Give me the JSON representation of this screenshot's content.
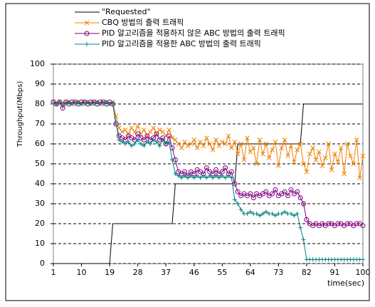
{
  "chart_data": {
    "type": "line",
    "y_label": "Throughput(Mbps)",
    "x_label": "time(sec)",
    "x": [
      1,
      2,
      3,
      4,
      5,
      6,
      7,
      8,
      9,
      10,
      11,
      12,
      13,
      14,
      15,
      16,
      17,
      18,
      19,
      20,
      21,
      22,
      23,
      24,
      25,
      26,
      27,
      28,
      29,
      30,
      31,
      32,
      33,
      34,
      35,
      36,
      37,
      38,
      39,
      40,
      41,
      42,
      43,
      44,
      45,
      46,
      47,
      48,
      49,
      50,
      51,
      52,
      53,
      54,
      55,
      56,
      57,
      58,
      59,
      60,
      61,
      62,
      63,
      64,
      65,
      66,
      67,
      68,
      69,
      70,
      71,
      72,
      73,
      74,
      75,
      76,
      77,
      78,
      79,
      80,
      81,
      82,
      83,
      84,
      85,
      86,
      87,
      88,
      89,
      90,
      91,
      92,
      93,
      94,
      95,
      96,
      97,
      98,
      99,
      100
    ],
    "xlim": [
      1,
      100
    ],
    "xticks": [
      1,
      10,
      19,
      28,
      37,
      46,
      55,
      64,
      73,
      82,
      91,
      100
    ],
    "ylim": [
      0,
      100
    ],
    "yticks": [
      0,
      10,
      20,
      30,
      40,
      50,
      60,
      70,
      80,
      90,
      100
    ],
    "grid": true,
    "series": [
      {
        "name": "\"Requested\"",
        "color": "#000000",
        "marker": "none",
        "values": [
          0,
          0,
          0,
          0,
          0,
          0,
          0,
          0,
          0,
          0,
          0,
          0,
          0,
          0,
          0,
          0,
          0,
          0,
          0,
          20,
          20,
          20,
          20,
          20,
          20,
          20,
          20,
          20,
          20,
          20,
          20,
          20,
          20,
          20,
          20,
          20,
          20,
          20,
          20,
          40,
          40,
          40,
          40,
          40,
          40,
          40,
          40,
          40,
          40,
          40,
          40,
          40,
          40,
          40,
          40,
          40,
          40,
          40,
          40,
          60,
          60,
          60,
          60,
          60,
          60,
          60,
          60,
          60,
          60,
          60,
          60,
          60,
          60,
          60,
          60,
          60,
          60,
          60,
          60,
          60,
          80,
          80,
          80,
          80,
          80,
          80,
          80,
          80,
          80,
          80,
          80,
          80,
          80,
          80,
          80,
          80,
          80,
          80,
          80,
          80
        ]
      },
      {
        "name": "CBQ 방법의 출력 트래픽",
        "color": "#f08000",
        "marker": "x",
        "values": [
          81,
          80,
          81,
          80,
          81,
          81,
          80,
          81,
          81,
          80,
          81,
          81,
          80,
          81,
          81,
          80,
          81,
          81,
          80,
          81,
          74,
          68,
          66,
          67,
          65,
          68,
          66,
          69,
          65,
          67,
          64,
          66,
          68,
          65,
          67,
          66,
          64,
          67,
          63,
          62,
          60,
          58,
          61,
          59,
          60,
          62,
          58,
          61,
          59,
          63,
          60,
          57,
          62,
          59,
          61,
          60,
          64,
          58,
          61,
          55,
          60,
          52,
          63,
          56,
          58,
          50,
          62,
          55,
          60,
          53,
          57,
          61,
          49,
          58,
          62,
          54,
          59,
          51,
          57,
          60,
          50,
          46,
          55,
          58,
          52,
          56,
          49,
          53,
          60,
          47,
          55,
          51,
          58,
          45,
          60,
          54,
          50,
          62,
          43,
          54
        ]
      },
      {
        "name": "PID 알고리즘을 적용하지 않은 ABC 방법의 출력 트래픽",
        "color": "#800080",
        "marker": "o",
        "values": [
          81,
          80,
          81,
          78,
          81,
          80,
          81,
          81,
          80,
          81,
          81,
          80,
          81,
          81,
          80,
          81,
          81,
          80,
          81,
          80,
          70,
          64,
          63,
          62,
          64,
          63,
          62,
          65,
          63,
          62,
          64,
          62,
          63,
          65,
          62,
          63,
          60,
          64,
          58,
          52,
          46,
          45,
          46,
          44,
          46,
          45,
          47,
          46,
          45,
          48,
          46,
          45,
          47,
          45,
          46,
          48,
          45,
          46,
          40,
          36,
          34,
          35,
          34,
          35,
          33,
          35,
          34,
          35,
          36,
          34,
          35,
          37,
          34,
          35,
          36,
          34,
          37,
          35,
          36,
          33,
          30,
          22,
          20,
          19,
          20,
          19,
          20,
          19,
          20,
          20,
          19,
          20,
          20,
          19,
          20,
          20,
          19,
          20,
          20,
          19
        ]
      },
      {
        "name": "PID 알고리즘을 적용한 ABC 방법의 출력 트래픽",
        "color": "#008080",
        "marker": "+",
        "values": [
          80,
          80,
          81,
          80,
          80,
          81,
          80,
          80,
          81,
          80,
          80,
          81,
          80,
          80,
          81,
          80,
          80,
          81,
          80,
          80,
          71,
          62,
          61,
          60,
          61,
          59,
          60,
          62,
          60,
          59,
          61,
          60,
          62,
          61,
          59,
          62,
          60,
          61,
          52,
          45,
          44,
          43,
          44,
          43,
          44,
          43,
          44,
          43,
          44,
          43,
          44,
          43,
          44,
          43,
          44,
          43,
          44,
          43,
          32,
          30,
          27,
          25,
          25,
          26,
          25,
          25,
          24,
          25,
          26,
          25,
          25,
          24,
          25,
          25,
          26,
          25,
          25,
          24,
          25,
          18,
          12,
          2,
          2,
          2,
          2,
          2,
          2,
          2,
          2,
          2,
          2,
          2,
          2,
          2,
          2,
          2,
          2,
          2,
          2,
          2
        ]
      }
    ]
  }
}
